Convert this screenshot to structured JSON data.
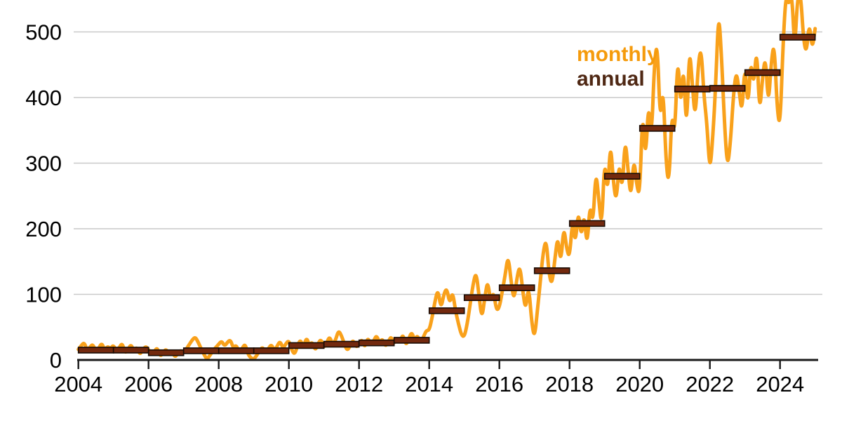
{
  "legend": {
    "monthly_label": "monthly",
    "annual_label": "annual"
  },
  "colors": {
    "monthly_line": "#F9A11B",
    "annual_fill": "#73290E",
    "annual_stroke": "#180B04",
    "grid": "#C9C9C9",
    "axis": "#1A1A1A",
    "tick_label": "#000000",
    "legend_monthly": "#F59B0C",
    "legend_annual": "#4F2814"
  },
  "chart_data": {
    "type": "line",
    "title": "",
    "xlabel": "",
    "ylabel": "",
    "grid": "horizontal",
    "legend_position": "upper-right-inside",
    "x_axis": {
      "tick_years": [
        2004,
        2006,
        2008,
        2010,
        2012,
        2014,
        2016,
        2018,
        2020,
        2022,
        2024
      ],
      "range": [
        2004,
        2025.1
      ]
    },
    "y_axis": {
      "ticks": [
        0,
        100,
        200,
        300,
        400,
        500
      ],
      "range": [
        0,
        548
      ]
    },
    "series": [
      {
        "name": "monthly",
        "render": "smooth-line",
        "start_year": 2004,
        "step_months": 1,
        "values": [
          16,
          22,
          27,
          14,
          20,
          24,
          12,
          18,
          26,
          15,
          21,
          17,
          23,
          12,
          19,
          26,
          10,
          16,
          24,
          13,
          20,
          8,
          15,
          21,
          16,
          7,
          13,
          19,
          5,
          11,
          17,
          8,
          14,
          4,
          10,
          15,
          10,
          17,
          24,
          31,
          35,
          27,
          17,
          8,
          1,
          7,
          14,
          19,
          24,
          29,
          21,
          27,
          31,
          18,
          23,
          11,
          17,
          25,
          9,
          3,
          1,
          7,
          14,
          20,
          11,
          17,
          24,
          14,
          21,
          29,
          17,
          25,
          30,
          15,
          8,
          23,
          31,
          18,
          35,
          22,
          28,
          14,
          25,
          32,
          18,
          27,
          36,
          22,
          31,
          45,
          37,
          24,
          14,
          22,
          31,
          19,
          24,
          32,
          18,
          35,
          22,
          29,
          38,
          25,
          33,
          20,
          28,
          36,
          24,
          34,
          27,
          40,
          22,
          32,
          43,
          30,
          38,
          25,
          35,
          45,
          45,
          65,
          90,
          108,
          78,
          100,
          110,
          85,
          105,
          75,
          55,
          38,
          35,
          55,
          85,
          115,
          135,
          100,
          62,
          95,
          122,
          88,
          105,
          75,
          80,
          105,
          130,
          160,
          120,
          90,
          125,
          145,
          105,
          75,
          115,
          60,
          32,
          75,
          120,
          165,
          185,
          130,
          114,
          155,
          190,
          145,
          205,
          170,
          155,
          215,
          175,
          230,
          185,
          225,
          170,
          240,
          205,
          290,
          245,
          200,
          310,
          250,
          335,
          270,
          240,
          305,
          255,
          340,
          290,
          245,
          310,
          265,
          250,
          385,
          300,
          395,
          335,
          450,
          488,
          360,
          420,
          300,
          265,
          380,
          340,
          470,
          380,
          455,
          342,
          480,
          420,
          365,
          450,
          478,
          400,
          360,
          285,
          340,
          420,
          535,
          460,
          360,
          292,
          330,
          400,
          442,
          410,
          375,
          455,
          380,
          460,
          415,
          480,
          374,
          430,
          465,
          385,
          455,
          485,
          383,
          353,
          480,
          558,
          540,
          562,
          470,
          555,
          560,
          490,
          466,
          516,
          472,
          505
        ]
      },
      {
        "name": "annual",
        "render": "step-bars",
        "start_year": 2004,
        "values": [
          15,
          15,
          11,
          14,
          14,
          14,
          22,
          24,
          26,
          30,
          75,
          95,
          110,
          136,
          208,
          280,
          353,
          413,
          414,
          438,
          492
        ]
      }
    ]
  }
}
